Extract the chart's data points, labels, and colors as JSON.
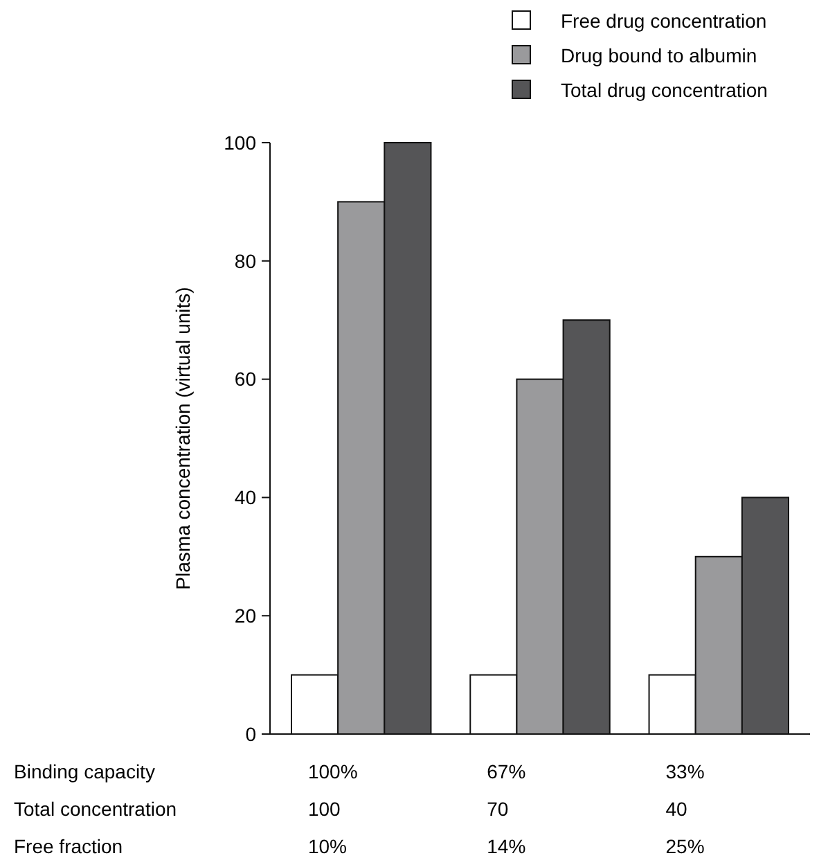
{
  "chart_data": {
    "type": "bar",
    "ylabel": "Plasma concentration (virtual units)",
    "xlabel": "Binding capacity",
    "categories": [
      "100%",
      "67%",
      "33%"
    ],
    "series": [
      {
        "name": "Free drug concentration",
        "color": "#ffffff",
        "values": [
          10,
          10,
          10
        ]
      },
      {
        "name": "Drug bound to albumin",
        "color": "#9a9a9c",
        "values": [
          90,
          60,
          30
        ]
      },
      {
        "name": "Total drug concentration",
        "color": "#555557",
        "values": [
          100,
          70,
          40
        ]
      }
    ],
    "ylim": [
      0,
      100
    ],
    "yticks": [
      0,
      20,
      40,
      60,
      80,
      100
    ],
    "grid": false,
    "legend": "top right",
    "annotations": [
      "Total concentration",
      "100",
      "70",
      "40",
      "Free fraction",
      "10%",
      "14%",
      "25%"
    ]
  }
}
